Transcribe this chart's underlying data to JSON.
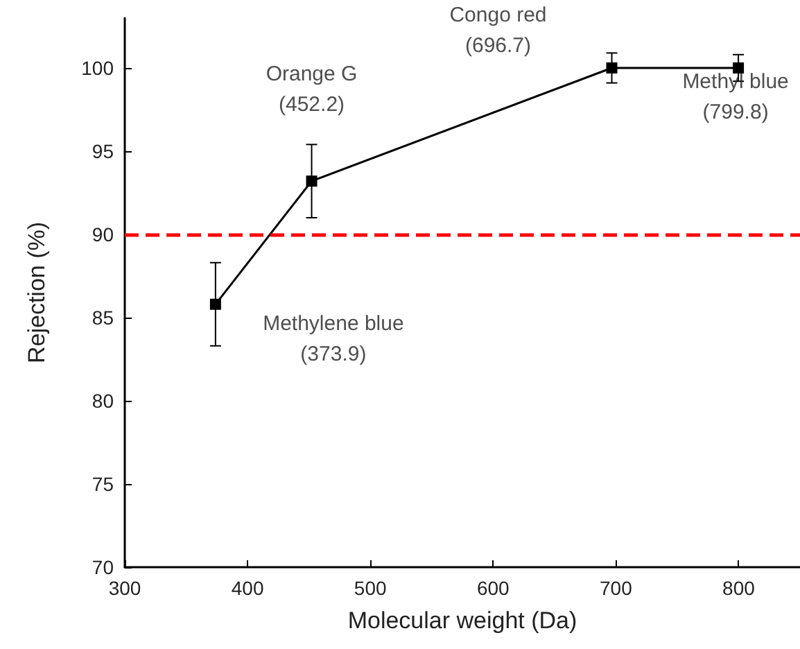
{
  "chart_data": {
    "type": "line",
    "xlabel": "Molecular weight (Da)",
    "ylabel": "Rejection (%)",
    "x": [
      373.9,
      452.2,
      696.7,
      799.8
    ],
    "series": [
      {
        "color": "#000000",
        "values": [
          85.8,
          93.2,
          100,
          100
        ],
        "errors": [
          [
            83.3,
            88.3
          ],
          [
            91.0,
            95.4
          ],
          [
            99.1,
            100.9
          ],
          [
            99.2,
            100.8
          ]
        ]
      }
    ],
    "xlim": [
      300,
      850
    ],
    "xticks": [
      300,
      400,
      500,
      600,
      700,
      800
    ],
    "ylim": [
      70,
      103
    ],
    "yticks": [
      70,
      75,
      80,
      85,
      90,
      95,
      100
    ],
    "ref_lines": [
      {
        "axis": "y",
        "value": 90,
        "color": "#ff0000",
        "line_style": "dashed"
      }
    ],
    "annotations": [
      "Methylene blue\n(373.9)",
      "Orange G\n(452.2)",
      "Congo red\n(696.7)",
      "Methyl blue\n(799.8)"
    ],
    "marker": "square",
    "line_style": "solid",
    "grid": false
  }
}
